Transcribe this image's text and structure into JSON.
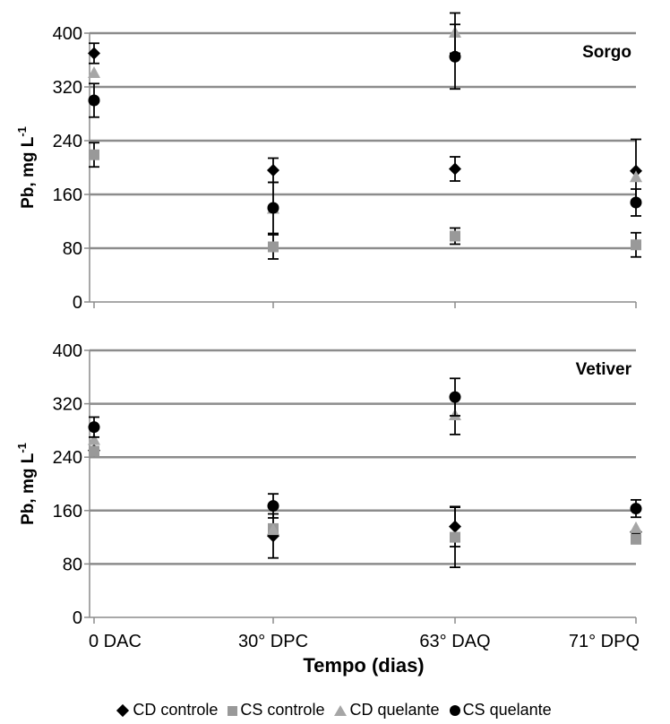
{
  "chart_data": {
    "type": "scatter",
    "x_categories": [
      "0 DAC",
      "30° DPC",
      "63° DAQ",
      "71° DPQ"
    ],
    "xlabel": "Tempo (dias)",
    "legend_position": "bottom",
    "grid": true,
    "series_styles": [
      {
        "name": "CD controle",
        "marker": "diamond",
        "color": "#000000"
      },
      {
        "name": "CS controle",
        "marker": "square",
        "color": "#999999"
      },
      {
        "name": "CD quelante",
        "marker": "triangle",
        "color": "#a6a6a6"
      },
      {
        "name": "CS quelante",
        "marker": "circle",
        "color": "#000000"
      }
    ],
    "panels": [
      {
        "label": "Sorgo",
        "ylabel": "Pb, mg L",
        "ylabel_sup": "-1",
        "ylim": [
          0,
          400
        ],
        "yticks": [
          0,
          80,
          160,
          240,
          320,
          400
        ],
        "series": [
          {
            "name": "CD controle",
            "values": [
              370,
              196,
              198,
              195
            ],
            "errors": [
              15,
              18,
              18,
              47
            ]
          },
          {
            "name": "CS controle",
            "values": [
              219,
              82,
              98,
              85
            ],
            "errors": [
              18,
              18,
              12,
              18
            ]
          },
          {
            "name": "CD quelante",
            "values": [
              340,
              138,
              400,
              185
            ],
            "errors": [
              0,
              0,
              30,
              0
            ]
          },
          {
            "name": "CS quelante",
            "values": [
              300,
              140,
              365,
              148
            ],
            "errors": [
              25,
              38,
              48,
              20
            ]
          }
        ]
      },
      {
        "label": "Vetiver",
        "ylabel": "Pb, mg L",
        "ylabel_sup": "-1",
        "ylim": [
          0,
          400
        ],
        "yticks": [
          0,
          80,
          160,
          240,
          320,
          400
        ],
        "series": [
          {
            "name": "CD controle",
            "values": [
              250,
              122,
              136,
              128
            ],
            "errors": [
              0,
              33,
              30,
              0
            ]
          },
          {
            "name": "CS controle",
            "values": [
              249,
              133,
              120,
              117
            ],
            "errors": [
              0,
              0,
              45,
              0
            ]
          },
          {
            "name": "CD quelante",
            "values": [
              265,
              130,
              302,
              133
            ],
            "errors": [
              0,
              0,
              28,
              0
            ]
          },
          {
            "name": "CS quelante",
            "values": [
              285,
              167,
              330,
              163
            ],
            "errors": [
              15,
              18,
              28,
              13
            ]
          }
        ]
      }
    ]
  }
}
